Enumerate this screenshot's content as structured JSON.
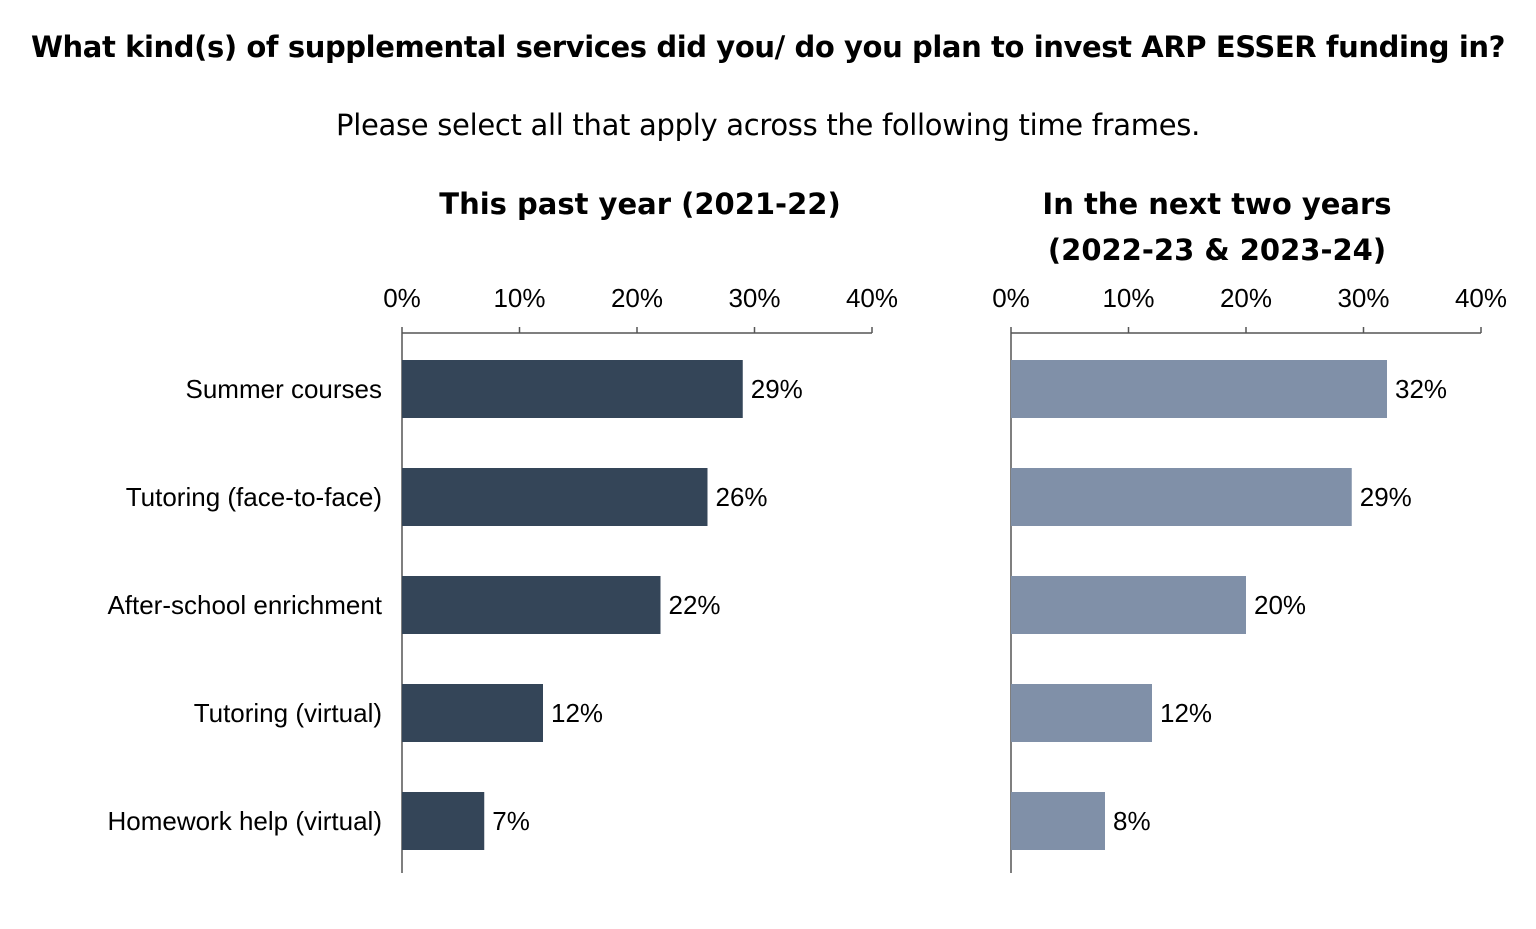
{
  "title": "What kind(s) of supplemental services did you/ do you plan to invest ARP ESSER funding in?",
  "subtitle": "Please select all that apply across the following time frames.",
  "chart_data": [
    {
      "type": "bar",
      "orientation": "horizontal",
      "title_lines": [
        "This past year (2021-22)"
      ],
      "categories": [
        "Summer courses",
        "Tutoring (face-to-face)",
        "After-school enrichment",
        "Tutoring (virtual)",
        "Homework help (virtual)"
      ],
      "values": [
        29,
        26,
        22,
        12,
        7
      ],
      "value_labels": [
        "29%",
        "26%",
        "22%",
        "12%",
        "7%"
      ],
      "xlim": [
        0,
        40
      ],
      "xticks": [
        "0%",
        "10%",
        "20%",
        "30%",
        "40%"
      ],
      "xaxis_position": "top",
      "grid": false,
      "color": "#344558"
    },
    {
      "type": "bar",
      "orientation": "horizontal",
      "title_lines": [
        "In the next two years",
        "(2022-23 & 2023-24)"
      ],
      "categories": [
        "Summer courses",
        "Tutoring (face-to-face)",
        "After-school enrichment",
        "Tutoring (virtual)",
        "Homework help (virtual)"
      ],
      "values": [
        32,
        29,
        20,
        12,
        8
      ],
      "value_labels": [
        "32%",
        "29%",
        "20%",
        "12%",
        "8%"
      ],
      "xlim": [
        0,
        40
      ],
      "xticks": [
        "0%",
        "10%",
        "20%",
        "30%",
        "40%"
      ],
      "xaxis_position": "top",
      "grid": false,
      "color": "#8090a8"
    }
  ]
}
